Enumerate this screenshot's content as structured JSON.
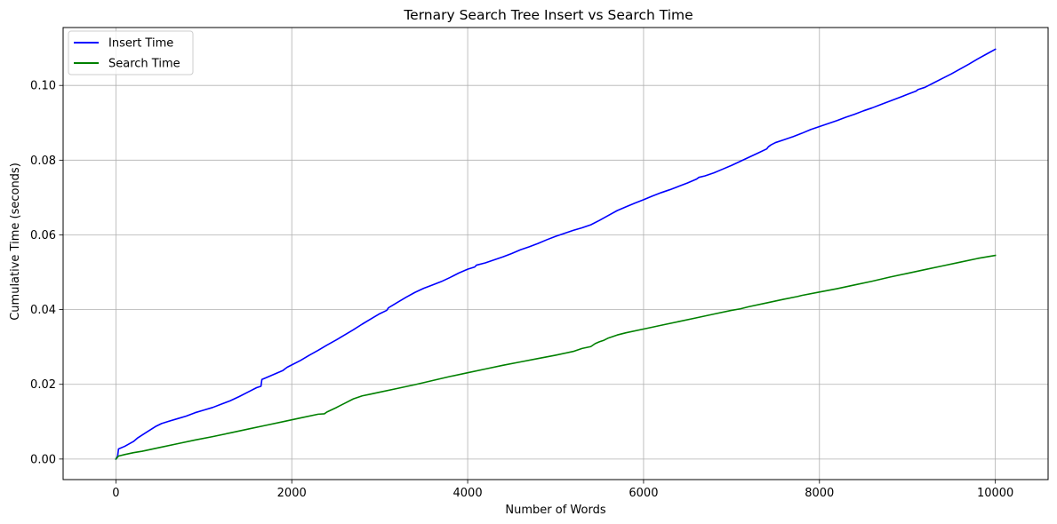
{
  "chart_data": {
    "type": "line",
    "title": "Ternary Search Tree Insert vs Search Time",
    "xlabel": "Number of Words",
    "ylabel": "Cumulative Time (seconds)",
    "xlim": [
      -600,
      10600
    ],
    "ylim": [
      -0.0055,
      0.1155
    ],
    "xticks": [
      0,
      2000,
      4000,
      6000,
      8000,
      10000
    ],
    "xtick_labels": [
      "0",
      "2000",
      "4000",
      "6000",
      "8000",
      "10000"
    ],
    "yticks": [
      0.0,
      0.02,
      0.04,
      0.06,
      0.08,
      0.1
    ],
    "ytick_labels": [
      "0.00",
      "0.02",
      "0.04",
      "0.06",
      "0.08",
      "0.10"
    ],
    "grid": true,
    "legend_position": "top-left",
    "series": [
      {
        "name": "Insert Time",
        "color": "#0000ff",
        "x": [
          0,
          20,
          30,
          100,
          200,
          250,
          350,
          450,
          520,
          600,
          700,
          800,
          900,
          1000,
          1100,
          1200,
          1300,
          1400,
          1500,
          1600,
          1650,
          1660,
          1700,
          1800,
          1900,
          1920,
          1950,
          2000,
          2100,
          2200,
          2300,
          2400,
          2500,
          2600,
          2700,
          2800,
          2900,
          3000,
          3080,
          3100,
          3150,
          3200,
          3300,
          3400,
          3500,
          3600,
          3700,
          3800,
          3900,
          4000,
          4080,
          4100,
          4200,
          4300,
          4400,
          4500,
          4600,
          4700,
          4800,
          4900,
          5000,
          5100,
          5200,
          5300,
          5400,
          5500,
          5600,
          5700,
          5800,
          5900,
          6000,
          6100,
          6200,
          6300,
          6400,
          6500,
          6600,
          6630,
          6700,
          6800,
          6900,
          7000,
          7100,
          7200,
          7300,
          7400,
          7420,
          7450,
          7500,
          7600,
          7700,
          7800,
          7900,
          8000,
          8100,
          8200,
          8300,
          8400,
          8500,
          8600,
          8700,
          8800,
          8900,
          9000,
          9100,
          9120,
          9200,
          9300,
          9400,
          9500,
          9600,
          9700,
          9800,
          9900,
          10000
        ],
        "values": [
          0.0,
          0.0008,
          0.0027,
          0.0034,
          0.0047,
          0.0057,
          0.0072,
          0.0087,
          0.0095,
          0.0101,
          0.0108,
          0.0115,
          0.0124,
          0.0131,
          0.0138,
          0.0147,
          0.0156,
          0.0167,
          0.0179,
          0.0191,
          0.0195,
          0.0213,
          0.0217,
          0.0227,
          0.0237,
          0.0241,
          0.0246,
          0.0252,
          0.0264,
          0.0278,
          0.0291,
          0.0305,
          0.0318,
          0.0332,
          0.0346,
          0.0361,
          0.0375,
          0.0389,
          0.0398,
          0.0405,
          0.0412,
          0.0419,
          0.0433,
          0.0446,
          0.0457,
          0.0466,
          0.0475,
          0.0486,
          0.0498,
          0.0508,
          0.0514,
          0.0519,
          0.0525,
          0.0533,
          0.0541,
          0.055,
          0.056,
          0.0568,
          0.0577,
          0.0587,
          0.0596,
          0.0604,
          0.0612,
          0.0619,
          0.0627,
          0.0639,
          0.0652,
          0.0665,
          0.0675,
          0.0685,
          0.0694,
          0.0704,
          0.0713,
          0.0721,
          0.073,
          0.0739,
          0.0749,
          0.0754,
          0.0758,
          0.0766,
          0.0776,
          0.0786,
          0.0797,
          0.0808,
          0.0819,
          0.083,
          0.0836,
          0.0841,
          0.0847,
          0.0855,
          0.0863,
          0.0872,
          0.0882,
          0.089,
          0.0898,
          0.0906,
          0.0915,
          0.0923,
          0.0932,
          0.094,
          0.0949,
          0.0958,
          0.0967,
          0.0976,
          0.0985,
          0.0989,
          0.0995,
          0.1007,
          0.1019,
          0.1031,
          0.1044,
          0.1057,
          0.1071,
          0.1084,
          0.1097
        ]
      },
      {
        "name": "Search Time",
        "color": "#008000",
        "x": [
          0,
          30,
          100,
          200,
          300,
          400,
          500,
          700,
          900,
          1100,
          1300,
          1500,
          1700,
          1900,
          2100,
          2300,
          2370,
          2400,
          2500,
          2600,
          2700,
          2800,
          2900,
          3000,
          3200,
          3400,
          3600,
          3800,
          4000,
          4200,
          4400,
          4600,
          4800,
          5000,
          5200,
          5300,
          5400,
          5450,
          5500,
          5550,
          5600,
          5700,
          5800,
          6000,
          6200,
          6400,
          6600,
          6800,
          7000,
          7100,
          7200,
          7400,
          7600,
          7750,
          7800,
          8000,
          8200,
          8400,
          8600,
          8800,
          9000,
          9200,
          9400,
          9600,
          9800,
          10000
        ],
        "values": [
          0.0,
          0.0008,
          0.0012,
          0.0017,
          0.0021,
          0.0026,
          0.0031,
          0.0041,
          0.0051,
          0.006,
          0.007,
          0.008,
          0.009,
          0.01,
          0.011,
          0.012,
          0.0121,
          0.0126,
          0.0137,
          0.0149,
          0.0161,
          0.0169,
          0.0174,
          0.0179,
          0.0189,
          0.0199,
          0.021,
          0.0221,
          0.0231,
          0.0241,
          0.0251,
          0.026,
          0.0269,
          0.0278,
          0.0288,
          0.0296,
          0.0301,
          0.0309,
          0.0314,
          0.0318,
          0.0324,
          0.0332,
          0.0338,
          0.0348,
          0.0358,
          0.0368,
          0.0378,
          0.0388,
          0.0398,
          0.0402,
          0.0408,
          0.0418,
          0.0428,
          0.0435,
          0.0438,
          0.0447,
          0.0456,
          0.0466,
          0.0476,
          0.0487,
          0.0497,
          0.0507,
          0.0517,
          0.0527,
          0.0537,
          0.0545
        ]
      }
    ]
  }
}
